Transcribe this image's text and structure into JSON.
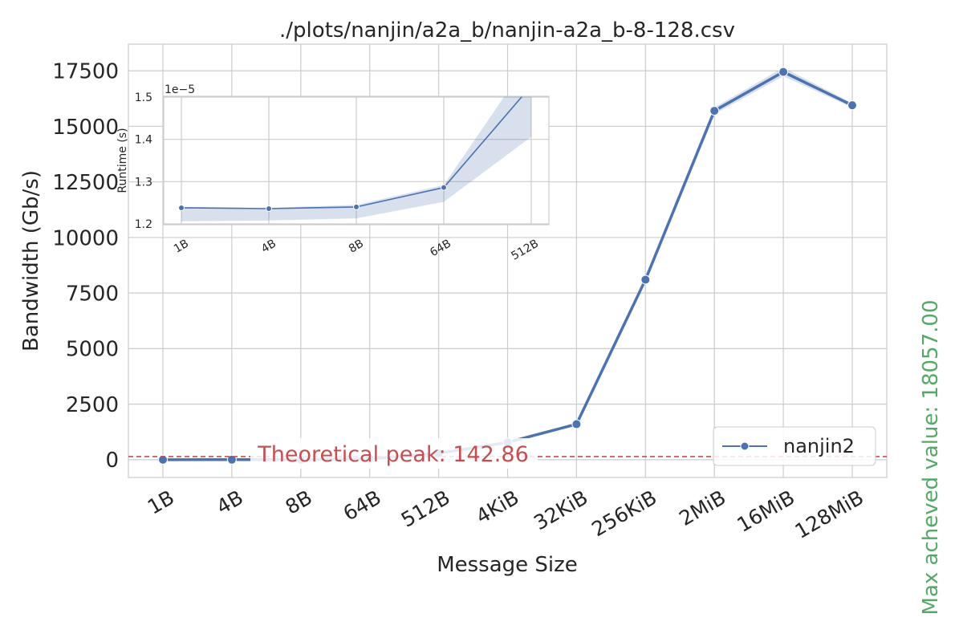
{
  "chart_data": [
    {
      "type": "line",
      "title": "./plots/nanjin/a2a_b/nanjin-a2a_b-8-128.csv",
      "xlabel": "Message Size",
      "ylabel": "Bandwidth (Gb/s)",
      "categories": [
        "1B",
        "4B",
        "8B",
        "64B",
        "512B",
        "4KiB",
        "32KiB",
        "256KiB",
        "2MiB",
        "16MiB",
        "128MiB"
      ],
      "ylim": [
        -800,
        18700
      ],
      "yticks": [
        0,
        2500,
        5000,
        7500,
        10000,
        12500,
        15000,
        17500
      ],
      "ytick_labels": [
        "0",
        "2500",
        "5000",
        "7500",
        "10000",
        "12500",
        "15000",
        "17500"
      ],
      "series": [
        {
          "name": "nanjin2",
          "color": "#4c72b0",
          "values": [
            0.6,
            2.4,
            4.8,
            38,
            290,
            780,
            1600,
            8100,
            15700,
            17450,
            15950
          ],
          "ci_low": [
            0.6,
            2.4,
            4.8,
            38,
            285,
            760,
            1560,
            8000,
            15550,
            17250,
            15850
          ],
          "ci_high": [
            0.6,
            2.4,
            4.8,
            38,
            295,
            800,
            1640,
            8200,
            15850,
            17650,
            16050
          ]
        }
      ],
      "legend": {
        "position": "lower-right",
        "entries": [
          "nanjin2"
        ]
      },
      "hline": {
        "value": 142.86,
        "color": "#c44e52",
        "label": "Theoretical peak: 142.86"
      },
      "side_note": {
        "text": "Max acheved value: 18057.00",
        "color": "#55a868"
      },
      "grid": true
    },
    {
      "type": "line",
      "title": "",
      "xlabel": "",
      "ylabel": "Runtime (s)",
      "offset_label": "1e−5",
      "categories": [
        "1B",
        "4B",
        "8B",
        "64B",
        "512B"
      ],
      "ylim": [
        1.198,
        1.502
      ],
      "yticks": [
        1.2,
        1.3,
        1.4,
        1.5
      ],
      "ytick_labels": [
        "1.2",
        "1.3",
        "1.4",
        "1.5"
      ],
      "series": [
        {
          "name": "nanjin2",
          "color": "#4c72b0",
          "values": [
            1.238,
            1.236,
            1.24,
            1.286,
            1.527
          ],
          "ci_low": [
            1.206,
            1.208,
            1.213,
            1.252,
            1.406
          ],
          "ci_high": [
            1.24,
            1.238,
            1.245,
            1.292,
            1.595
          ]
        }
      ],
      "grid": true
    }
  ]
}
